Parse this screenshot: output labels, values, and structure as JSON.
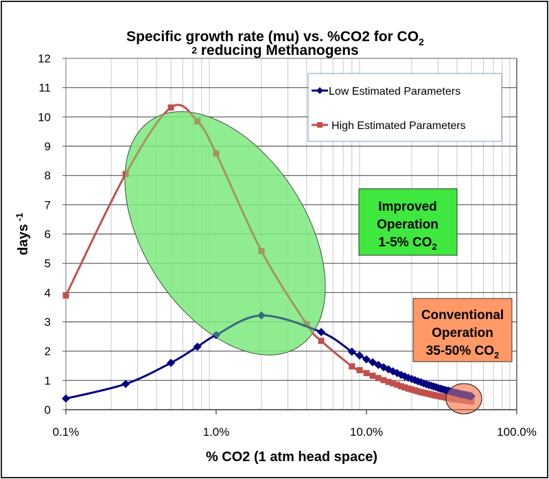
{
  "chart_data": {
    "type": "line",
    "title_line1": "Specific growth rate (mu) vs. %CO2 for CO",
    "title_line1_sub": "2",
    "title_line2_pre": "",
    "title_line2_sub_lead": "2",
    "title_line2": " reducing Methanogens",
    "xlabel": "% CO2 (1 atm head space)",
    "ylabel": "days",
    "ylabel_sup": "-1",
    "xscale": "log",
    "xlim": [
      0.1,
      100
    ],
    "ylim": [
      0,
      12
    ],
    "x_ticks": [
      0.1,
      1,
      10,
      100
    ],
    "x_tick_labels": [
      "0.1%",
      "1.0%",
      "10.0%",
      "100.0%"
    ],
    "y_ticks": [
      0,
      1,
      2,
      3,
      4,
      5,
      6,
      7,
      8,
      9,
      10,
      11,
      12
    ],
    "y_tick_labels": [
      "0",
      "1",
      "2",
      "3",
      "4",
      "5",
      "6",
      "7",
      "8",
      "9",
      "10",
      "11",
      "12"
    ],
    "grid": true,
    "legend_position": "top-right",
    "series": [
      {
        "name": "Low Estimated Parameters",
        "color": "#000080",
        "marker": "diamond",
        "x": [
          0.1,
          0.25,
          0.5,
          0.75,
          1,
          2,
          5,
          8,
          9,
          10,
          11,
          12,
          13,
          14,
          15,
          16,
          17,
          18,
          19,
          20,
          21,
          22,
          23,
          24,
          25,
          26,
          27,
          28,
          29,
          30,
          31,
          32,
          33,
          34,
          35,
          36,
          37,
          38,
          39,
          40,
          41,
          42,
          43,
          44,
          45,
          46,
          47,
          48,
          49,
          50
        ],
        "y": [
          0.38,
          0.88,
          1.6,
          2.15,
          2.55,
          3.22,
          2.65,
          1.98,
          1.85,
          1.72,
          1.62,
          1.53,
          1.45,
          1.38,
          1.31,
          1.25,
          1.19,
          1.14,
          1.09,
          1.05,
          1.01,
          0.97,
          0.94,
          0.9,
          0.87,
          0.84,
          0.82,
          0.79,
          0.77,
          0.74,
          0.72,
          0.7,
          0.68,
          0.66,
          0.65,
          0.63,
          0.61,
          0.6,
          0.58,
          0.57,
          0.56,
          0.54,
          0.53,
          0.52,
          0.51,
          0.5,
          0.49,
          0.48,
          0.47,
          0.46
        ]
      },
      {
        "name": "High Estimated Parameters",
        "color": "#C0504D",
        "marker": "square",
        "x": [
          0.1,
          0.25,
          0.5,
          0.75,
          1,
          2,
          4,
          5,
          8,
          9,
          10,
          11,
          12,
          13,
          14,
          15,
          16,
          17,
          18,
          19,
          20,
          21,
          22,
          23,
          24,
          25,
          26,
          27,
          28,
          29,
          30,
          31,
          32,
          33,
          34,
          35,
          36,
          37,
          38,
          39,
          40,
          41,
          42,
          43,
          44,
          45,
          46,
          47,
          48,
          49,
          50
        ],
        "y": [
          3.9,
          8.05,
          10.32,
          9.85,
          8.75,
          5.42,
          2.92,
          2.35,
          1.48,
          1.35,
          1.25,
          1.16,
          1.08,
          1.01,
          0.95,
          0.9,
          0.85,
          0.8,
          0.76,
          0.72,
          0.69,
          0.66,
          0.63,
          0.6,
          0.58,
          0.56,
          0.54,
          0.52,
          0.5,
          0.48,
          0.47,
          0.45,
          0.44,
          0.43,
          0.41,
          0.4,
          0.39,
          0.38,
          0.37,
          0.36,
          0.35,
          0.35,
          0.34,
          0.33,
          0.32,
          0.32,
          0.31,
          0.3,
          0.3,
          0.29,
          0.28
        ]
      }
    ],
    "annotations": [
      {
        "name": "improved-operation",
        "lines": [
          "Improved",
          "Operation",
          "1-5% CO"
        ],
        "sub": "2",
        "box_color": "#3EE83E",
        "ellipse_color": "#7FE87F"
      },
      {
        "name": "conventional-operation",
        "lines": [
          "Conventional",
          "Operation",
          "35-50% CO"
        ],
        "sub": "2",
        "box_color": "#FF9966",
        "ellipse_color": "#FFA080"
      }
    ]
  }
}
